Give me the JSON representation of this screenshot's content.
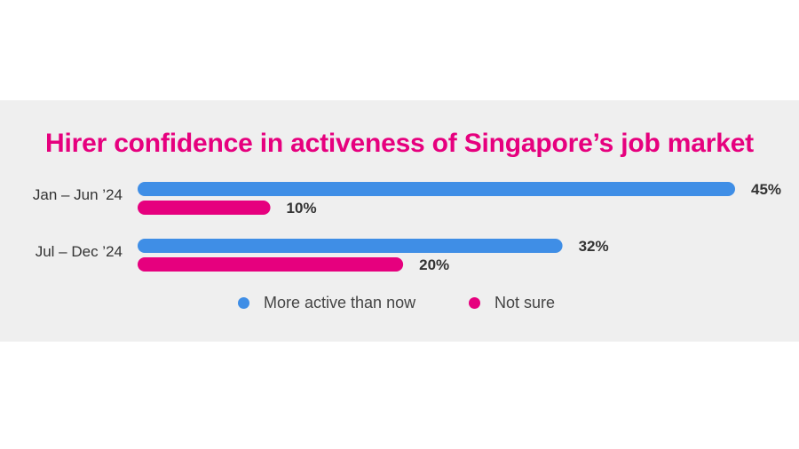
{
  "chart_data": {
    "type": "bar",
    "orientation": "horizontal",
    "title": "Hirer confidence in activeness of Singapore’s job market",
    "categories": [
      "Jan – Jun ’24",
      "Jul – Dec ’24"
    ],
    "series": [
      {
        "name": "More active than now",
        "values": [
          45,
          32
        ],
        "labels": [
          "45%",
          "32%"
        ],
        "color": "#3f8ee6"
      },
      {
        "name": "Not sure",
        "values": [
          10,
          20
        ],
        "labels": [
          "10%",
          "20%"
        ],
        "color": "#e6007e"
      }
    ],
    "xlim": [
      0,
      45
    ],
    "grid": false,
    "legend_position": "bottom"
  },
  "colors": {
    "title": "#e6007e",
    "panel_background": "#efefef"
  }
}
